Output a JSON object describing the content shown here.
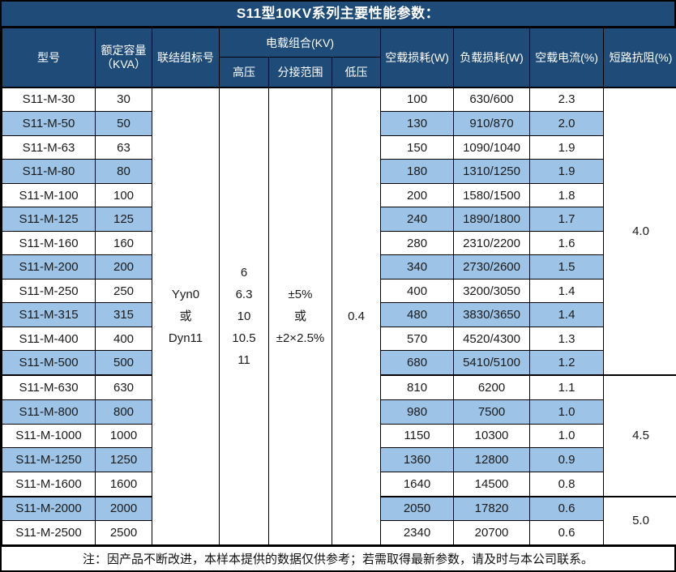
{
  "title": "S11型10KV系列主要性能参数：",
  "table": {
    "columns": {
      "model": "型号",
      "capacity_line1": "额定容量",
      "capacity_line2": "（KVA）",
      "vector_group": "联结组标号",
      "voltage_combo": "电载组合(KV)",
      "hv": "高压",
      "tap_range": "分接范围",
      "lv": "低压",
      "no_load_loss": "空载损耗(W)",
      "load_loss": "负载损耗(W)",
      "no_load_current": "空载电流(%)",
      "impedance": "短路抗阻(%)"
    },
    "merged": {
      "vector_group": [
        "Yyn0",
        "或",
        "Dyn11"
      ],
      "hv": [
        "6",
        "6.3",
        "10",
        "10.5",
        "11"
      ],
      "tap_range": [
        "±5%",
        "或",
        "±2×2.5%"
      ],
      "lv": [
        "0.4"
      ]
    },
    "rows": [
      {
        "model": "S11-M-30",
        "capacity": "30",
        "no_load_loss": "100",
        "load_loss": "630/600",
        "no_load_current": "2.3"
      },
      {
        "model": "S11-M-50",
        "capacity": "50",
        "no_load_loss": "130",
        "load_loss": "910/870",
        "no_load_current": "2.0"
      },
      {
        "model": "S11-M-63",
        "capacity": "63",
        "no_load_loss": "150",
        "load_loss": "1090/1040",
        "no_load_current": "1.9"
      },
      {
        "model": "S11-M-80",
        "capacity": "80",
        "no_load_loss": "180",
        "load_loss": "1310/1250",
        "no_load_current": "1.9"
      },
      {
        "model": "S11-M-100",
        "capacity": "100",
        "no_load_loss": "200",
        "load_loss": "1580/1500",
        "no_load_current": "1.8"
      },
      {
        "model": "S11-M-125",
        "capacity": "125",
        "no_load_loss": "240",
        "load_loss": "1890/1800",
        "no_load_current": "1.7"
      },
      {
        "model": "S11-M-160",
        "capacity": "160",
        "no_load_loss": "280",
        "load_loss": "2310/2200",
        "no_load_current": "1.6"
      },
      {
        "model": "S11-M-200",
        "capacity": "200",
        "no_load_loss": "340",
        "load_loss": "2730/2600",
        "no_load_current": "1.5"
      },
      {
        "model": "S11-M-250",
        "capacity": "250",
        "no_load_loss": "400",
        "load_loss": "3200/3050",
        "no_load_current": "1.4"
      },
      {
        "model": "S11-M-315",
        "capacity": "315",
        "no_load_loss": "480",
        "load_loss": "3830/3650",
        "no_load_current": "1.4"
      },
      {
        "model": "S11-M-400",
        "capacity": "400",
        "no_load_loss": "570",
        "load_loss": "4520/4300",
        "no_load_current": "1.3"
      },
      {
        "model": "S11-M-500",
        "capacity": "500",
        "no_load_loss": "680",
        "load_loss": "5410/5100",
        "no_load_current": "1.2"
      },
      {
        "model": "S11-M-630",
        "capacity": "630",
        "no_load_loss": "810",
        "load_loss": "6200",
        "no_load_current": "1.1"
      },
      {
        "model": "S11-M-800",
        "capacity": "800",
        "no_load_loss": "980",
        "load_loss": "7500",
        "no_load_current": "1.0"
      },
      {
        "model": "S11-M-1000",
        "capacity": "1000",
        "no_load_loss": "1150",
        "load_loss": "10300",
        "no_load_current": "1.0"
      },
      {
        "model": "S11-M-1250",
        "capacity": "1250",
        "no_load_loss": "1360",
        "load_loss": "12800",
        "no_load_current": "0.9"
      },
      {
        "model": "S11-M-1600",
        "capacity": "1600",
        "no_load_loss": "1640",
        "load_loss": "14500",
        "no_load_current": "0.8"
      },
      {
        "model": "S11-M-2000",
        "capacity": "2000",
        "no_load_loss": "2050",
        "load_loss": "17820",
        "no_load_current": "0.6"
      },
      {
        "model": "S11-M-2500",
        "capacity": "2500",
        "no_load_loss": "2340",
        "load_loss": "20700",
        "no_load_current": "0.6"
      }
    ],
    "impedance_groups": [
      {
        "value": "4.0",
        "start": 0,
        "span": 12
      },
      {
        "value": "4.5",
        "start": 12,
        "span": 5
      },
      {
        "value": "5.0",
        "start": 17,
        "span": 2
      }
    ]
  },
  "footer": {
    "note": "注：因产品不断改进，本样本提供的数据仅供参考；若需取得最新参数，请及时与本公司联系。"
  },
  "colors": {
    "header_bg": "#1F4B78",
    "alt_row_bg": "#9DC3E6",
    "border": "#000000",
    "header_text": "#FFFFFF",
    "body_text": "#1A1A1A"
  }
}
